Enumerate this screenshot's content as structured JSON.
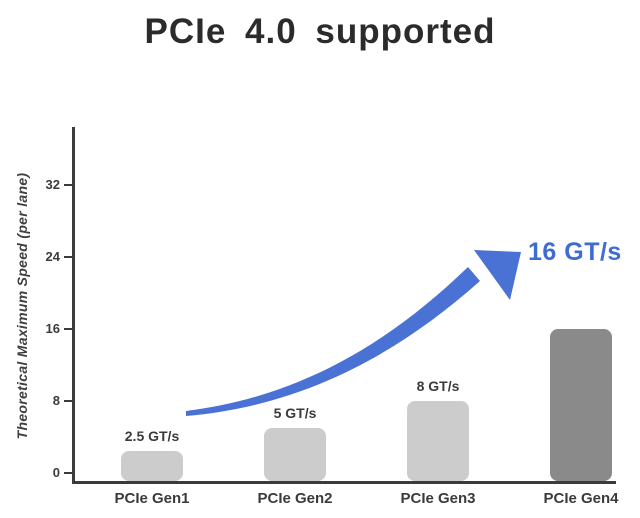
{
  "title": "PCIe 4.0 supported",
  "chart_data": {
    "type": "bar",
    "title": "PCIe 4.0 supported",
    "categories": [
      "PCIe Gen1",
      "PCIe Gen2",
      "PCIe Gen3",
      "PCIe Gen4"
    ],
    "values": [
      2.5,
      5,
      8,
      16
    ],
    "value_labels": [
      "2.5 GT/s",
      "5 GT/s",
      "8 GT/s",
      ""
    ],
    "unit": "GT/s",
    "xlabel": "",
    "ylabel": "Theoretical Maximum Speed (per lane)",
    "yticks": [
      0,
      8,
      16,
      24,
      32
    ],
    "ylim": [
      0,
      39
    ],
    "grid": false,
    "legend": "none",
    "highlight_index": 3,
    "annotation": {
      "text": "16 GT/s",
      "target": "PCIe Gen4",
      "color": "#3f6cd1"
    },
    "colors": {
      "bar": "#cccccc",
      "bar_highlight": "#8a8a8a",
      "arrow": "#4a72d4",
      "axis": "#3b3b3b",
      "text": "#3b3b3b",
      "title": "#2b2b2b",
      "background": "#ffffff"
    }
  }
}
